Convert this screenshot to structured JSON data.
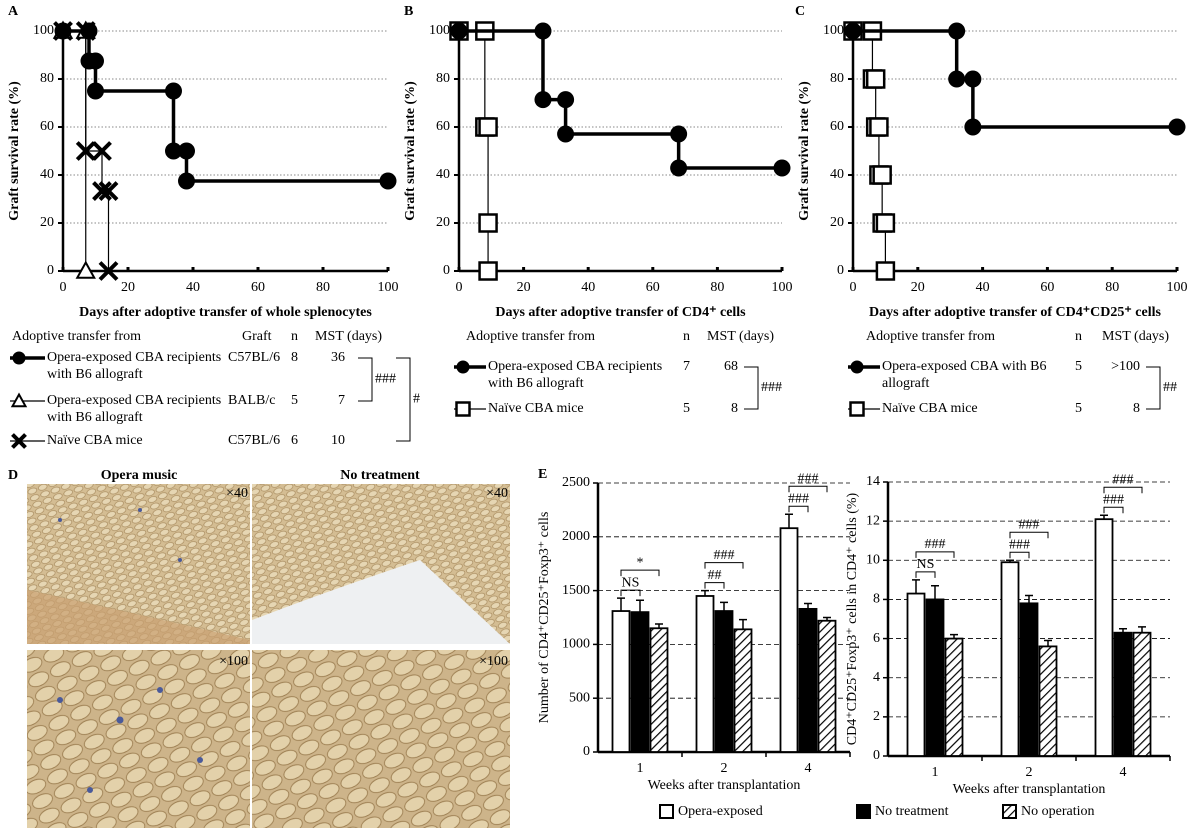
{
  "chart_data": [
    {
      "type": "survival",
      "panel": "A",
      "ylabel": "Graft survival rate (%)",
      "xlabel": "Days after adoptive transfer of whole splenocytes",
      "xlim": [
        0,
        100
      ],
      "xticks": [
        0,
        20,
        40,
        60,
        80,
        100
      ],
      "ylim": [
        0,
        100
      ],
      "yticks": [
        0,
        20,
        40,
        60,
        80,
        100
      ],
      "grid": true,
      "series": [
        {
          "name": "Opera-exposed CBA recipients with B6 allograft",
          "color": "#000000",
          "marker": "circle",
          "line_width": 3.5,
          "x": [
            0,
            8,
            8,
            10,
            10,
            34,
            34,
            38,
            38,
            100
          ],
          "values": [
            100,
            100,
            87.5,
            87.5,
            75,
            75,
            50,
            50,
            37.5,
            37.5
          ]
        },
        {
          "name": "Opera-exposed CBA recipients with B6 allograft",
          "color": "#000000",
          "marker": "triangle",
          "line_width": 1.2,
          "x": [
            0,
            7,
            7
          ],
          "values": [
            100,
            100,
            0
          ]
        },
        {
          "name": "Naïve CBA mice",
          "color": "#000000",
          "marker": "cross",
          "line_width": 1.2,
          "x": [
            0,
            7,
            7,
            12,
            12,
            14,
            14
          ],
          "values": [
            100,
            100,
            50,
            50,
            33.3,
            33.3,
            0
          ]
        }
      ],
      "table": {
        "header": [
          "Adoptive transfer from",
          "Graft",
          "n",
          "MST (days)"
        ],
        "rows": [
          [
            "C57BL/6",
            8,
            36
          ],
          [
            "BALB/c",
            5,
            7
          ],
          [
            "C57BL/6",
            6,
            10
          ]
        ],
        "significance": [
          "###",
          "#"
        ]
      }
    },
    {
      "type": "survival",
      "panel": "B",
      "ylabel": "Graft survival rate (%)",
      "xlabel": "Days after adoptive transfer of CD4⁺ cells",
      "xlim": [
        0,
        100
      ],
      "xticks": [
        0,
        20,
        40,
        60,
        80,
        100
      ],
      "ylim": [
        0,
        100
      ],
      "yticks": [
        0,
        20,
        40,
        60,
        80,
        100
      ],
      "grid": true,
      "series": [
        {
          "name": "Opera-exposed CBA recipients with B6 allograft",
          "color": "#000000",
          "marker": "circle",
          "line_width": 3.5,
          "x": [
            0,
            26,
            26,
            33,
            33,
            68,
            68,
            100
          ],
          "values": [
            100,
            100,
            71.4,
            71.4,
            57.1,
            57.1,
            42.9,
            42.9
          ]
        },
        {
          "name": "Naïve CBA mice",
          "color": "#000000",
          "marker": "square",
          "line_width": 1.2,
          "x": [
            0,
            8,
            8,
            9,
            9,
            9
          ],
          "values": [
            100,
            100,
            60,
            60,
            20,
            0
          ]
        }
      ],
      "table": {
        "header": [
          "Adoptive transfer from",
          "n",
          "MST (days)"
        ],
        "rows": [
          [
            7,
            68
          ],
          [
            5,
            8
          ]
        ],
        "significance": [
          "###"
        ]
      }
    },
    {
      "type": "survival",
      "panel": "C",
      "ylabel": "Graft survival rate (%)",
      "xlabel": "Days after adoptive transfer of CD4⁺CD25⁺ cells",
      "xlim": [
        0,
        100
      ],
      "xticks": [
        0,
        20,
        40,
        60,
        80,
        100
      ],
      "ylim": [
        0,
        100
      ],
      "yticks": [
        0,
        20,
        40,
        60,
        80,
        100
      ],
      "grid": true,
      "series": [
        {
          "name": "Opera-exposed CBA with B6 allograft",
          "color": "#000000",
          "marker": "circle",
          "line_width": 3.5,
          "x": [
            0,
            32,
            32,
            37,
            37,
            100
          ],
          "values": [
            100,
            100,
            80,
            80,
            60,
            60
          ]
        },
        {
          "name": "Naïve CBA mice",
          "color": "#000000",
          "marker": "square",
          "line_width": 1.2,
          "x": [
            0,
            6,
            6,
            7,
            7,
            8,
            8,
            9,
            9,
            10,
            10
          ],
          "values": [
            100,
            100,
            80,
            80,
            60,
            60,
            40,
            40,
            20,
            20,
            0
          ]
        }
      ],
      "table": {
        "header": [
          "Adoptive transfer from",
          "n",
          "MST (days)"
        ],
        "rows": [
          [
            5,
            ">100"
          ],
          [
            5,
            8
          ]
        ],
        "significance": [
          "##"
        ]
      }
    },
    {
      "type": "bar",
      "panel": "E",
      "ylabel": "Number of CD4⁺CD25⁺Foxp3⁺ cells",
      "xlabel": "Weeks after transplantation",
      "categories": [
        "1",
        "2",
        "4"
      ],
      "ylim": [
        0,
        2500
      ],
      "yticks": [
        0,
        500,
        1000,
        1500,
        2000,
        2500
      ],
      "grid": true,
      "series": [
        {
          "name": "Opera-exposed",
          "color": "#ffffff",
          "values": [
            1310,
            1450,
            2080
          ],
          "errors": [
            120,
            50,
            130
          ]
        },
        {
          "name": "No treatment",
          "color": "#000000",
          "values": [
            1300,
            1310,
            1330
          ],
          "errors": [
            110,
            80,
            50
          ]
        },
        {
          "name": "No operation",
          "color": "#ffffff",
          "hatch": true,
          "values": [
            1150,
            1140,
            1220
          ],
          "errors": [
            40,
            90,
            30
          ]
        }
      ],
      "annotations": [
        [
          "NS",
          "*"
        ],
        [
          "##",
          "###"
        ],
        [
          "###",
          "###"
        ]
      ]
    },
    {
      "type": "bar",
      "ylabel": "CD4⁺CD25⁺Foxp3⁺ cells in CD4⁺ cells (%)",
      "xlabel": "Weeks after transplantation",
      "categories": [
        "1",
        "2",
        "4"
      ],
      "ylim": [
        0,
        14
      ],
      "yticks": [
        0,
        2,
        4,
        6,
        8,
        10,
        12,
        14
      ],
      "grid": true,
      "series": [
        {
          "color": "#ffffff",
          "values": [
            8.3,
            9.9,
            12.1
          ],
          "errors": [
            0.7,
            0.1,
            0.2
          ]
        },
        {
          "color": "#000000",
          "values": [
            8.0,
            7.8,
            6.3
          ],
          "errors": [
            0.7,
            0.4,
            0.2
          ]
        },
        {
          "color": "#ffffff",
          "hatch": true,
          "values": [
            6.0,
            5.6,
            6.3
          ],
          "errors": [
            0.2,
            0.3,
            0.3
          ]
        }
      ],
      "annotations": [
        [
          "NS",
          "###"
        ],
        [
          "###",
          "###"
        ],
        [
          "###",
          "###"
        ]
      ]
    }
  ],
  "panel_d": {
    "label": "D",
    "columns": [
      "Opera music",
      "No treatment"
    ],
    "magnifications": [
      "×40",
      "×40",
      "×100",
      "×100"
    ]
  }
}
